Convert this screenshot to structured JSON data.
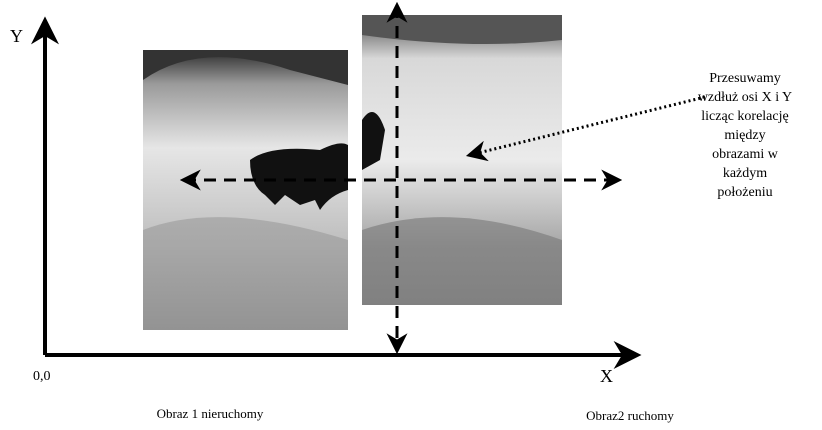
{
  "axes": {
    "y_label": "Y",
    "x_label": "X",
    "origin_label": "0,0"
  },
  "annotation": {
    "lines": [
      "Przesuwamy",
      "wzdłuż osi X i Y",
      "licząc korelację",
      "między",
      "obrazami  w",
      "każdym",
      "położeniu"
    ]
  },
  "captions": {
    "fixed_image": "Obraz 1 nieruchomy",
    "moving_image": "Obraz2 ruchomy"
  }
}
